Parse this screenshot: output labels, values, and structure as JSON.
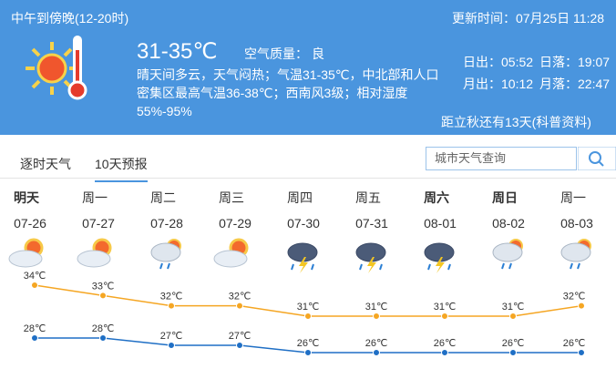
{
  "header": {
    "period": "中午到傍晚(12-20时)",
    "temperature": "31-35℃",
    "air_quality_label": "空气质量：",
    "air_quality": "良",
    "description": "晴天间多云，天气闷热；气温31-35℃，中北部和人口密集区最高气温36-38℃；西南风3级；相对湿度55%-95%",
    "update_time": "更新时间：07月25日 11:28",
    "sunrise": "日出：05:52",
    "sunset": "日落：19:07",
    "moonrise": "月出：10:12",
    "moonset": "月落：22:47",
    "countdown": "距立秋还有13天(科普资料)"
  },
  "tabs": [
    "逐时天气",
    "10天预报"
  ],
  "search": {
    "placeholder": "城市天气查询"
  },
  "forecast": {
    "weekdays": [
      "明天",
      "周一",
      "周二",
      "周三",
      "周四",
      "周五",
      "周六",
      "周日",
      "周一"
    ],
    "dates": [
      "07-26",
      "07-27",
      "07-28",
      "07-29",
      "07-30",
      "07-31",
      "08-01",
      "08-02",
      "08-03"
    ]
  },
  "chart_data": {
    "type": "line",
    "series": [
      {
        "color": "#f5a623",
        "values": [
          34,
          33,
          32,
          32,
          31,
          31,
          31,
          31,
          32
        ],
        "value_labels": [
          "34℃",
          "33℃",
          "32℃",
          "32℃",
          "31℃",
          "31℃",
          "31℃",
          "31℃",
          "32℃"
        ]
      },
      {
        "color": "#1f6fc5",
        "values": [
          28,
          28,
          27,
          27,
          26,
          26,
          26,
          26,
          26
        ],
        "value_labels": [
          "28℃",
          "28℃",
          "27℃",
          "27℃",
          "26℃",
          "26℃",
          "26℃",
          "26℃",
          "26℃"
        ]
      }
    ]
  }
}
